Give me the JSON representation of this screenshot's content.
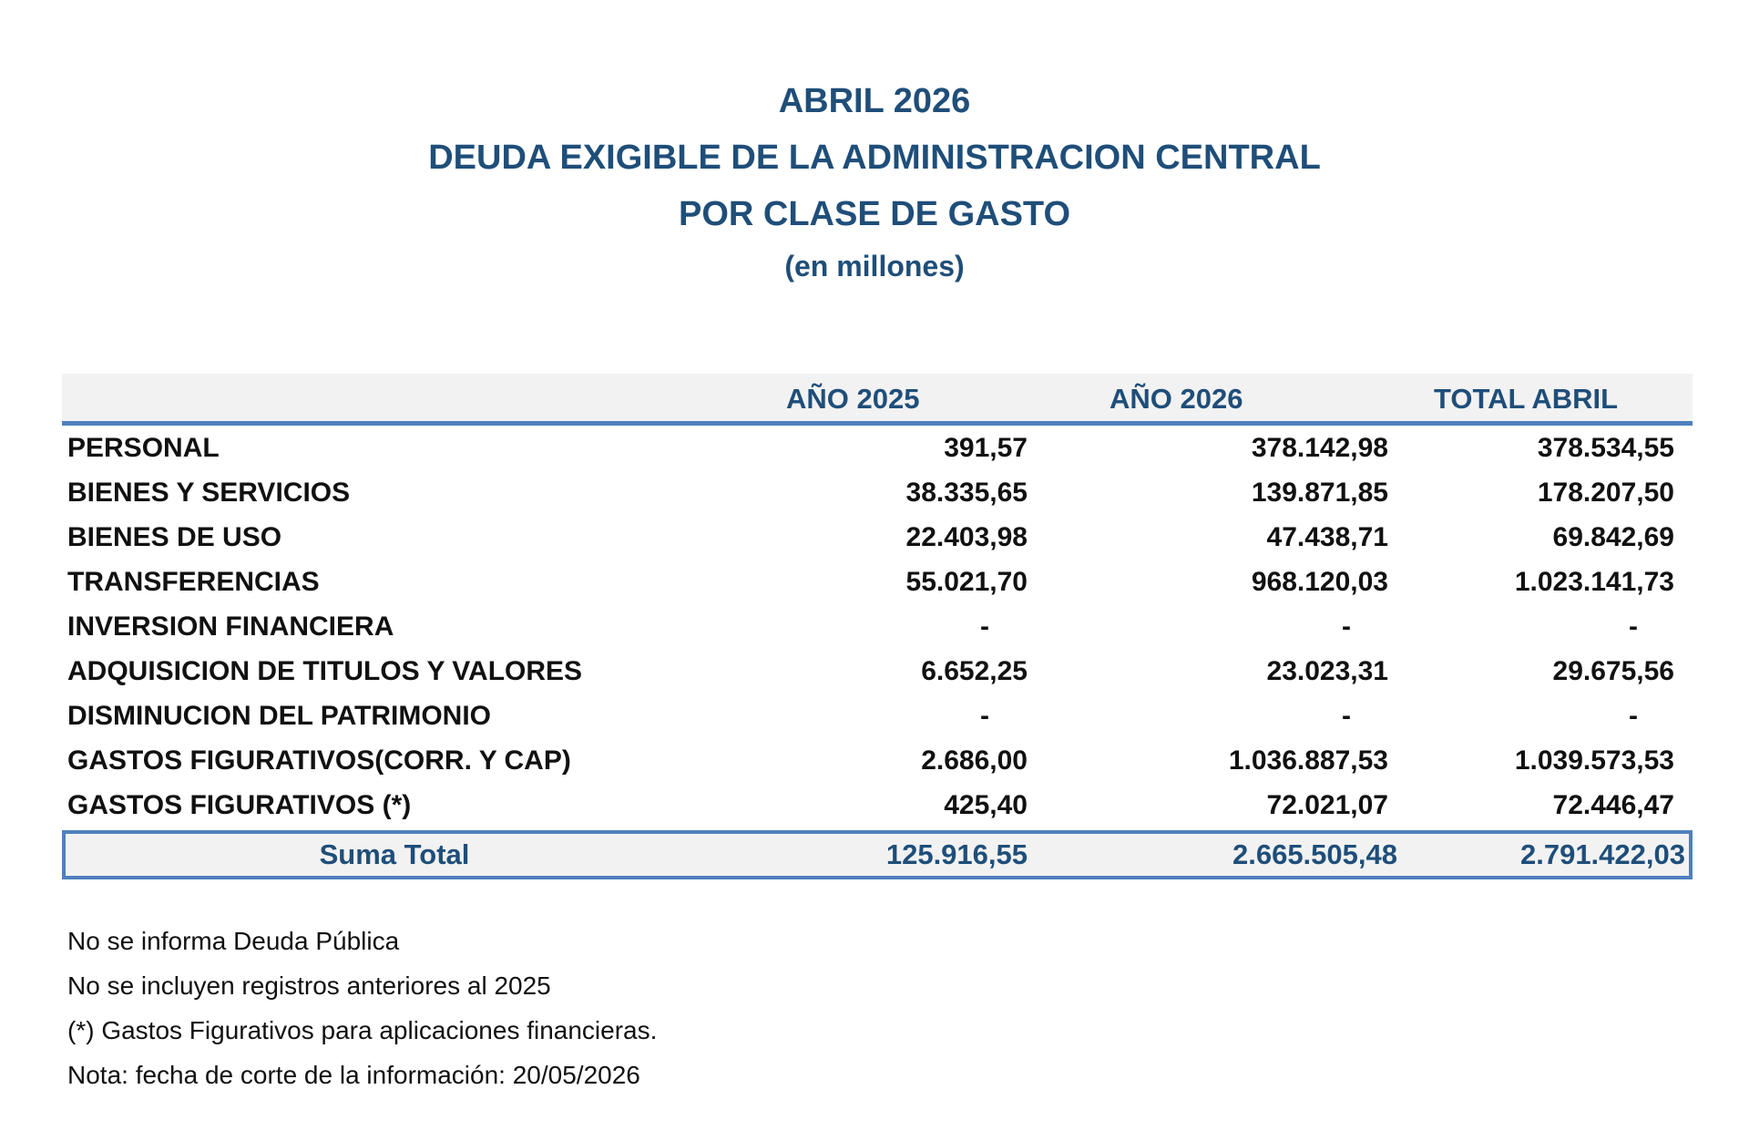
{
  "title": {
    "line1": "ABRIL 2026",
    "line2": "DEUDA EXIGIBLE DE LA ADMINISTRACION CENTRAL",
    "line3": "POR CLASE DE GASTO",
    "line4": "(en millones)"
  },
  "table": {
    "headers": [
      "",
      "AÑO 2025",
      "AÑO 2026",
      "TOTAL ABRIL"
    ],
    "rows": [
      {
        "label": "PERSONAL",
        "y2025": "391,57",
        "y2026": "378.142,98",
        "total": "378.534,55"
      },
      {
        "label": "BIENES Y SERVICIOS",
        "y2025": "38.335,65",
        "y2026": "139.871,85",
        "total": "178.207,50"
      },
      {
        "label": "BIENES DE USO",
        "y2025": "22.403,98",
        "y2026": "47.438,71",
        "total": "69.842,69"
      },
      {
        "label": "TRANSFERENCIAS",
        "y2025": "55.021,70",
        "y2026": "968.120,03",
        "total": "1.023.141,73"
      },
      {
        "label": "INVERSION FINANCIERA",
        "y2025": "-",
        "y2026": "-",
        "total": "-"
      },
      {
        "label": "ADQUISICION DE TITULOS Y VALORES",
        "y2025": "6.652,25",
        "y2026": "23.023,31",
        "total": "29.675,56"
      },
      {
        "label": "DISMINUCION DEL PATRIMONIO",
        "y2025": "-",
        "y2026": "-",
        "total": "-"
      },
      {
        "label": "GASTOS FIGURATIVOS(CORR. Y CAP)",
        "y2025": "2.686,00",
        "y2026": "1.036.887,53",
        "total": "1.039.573,53"
      },
      {
        "label": "GASTOS FIGURATIVOS (*)",
        "y2025": "425,40",
        "y2026": "72.021,07",
        "total": "72.446,47"
      }
    ],
    "total_row": {
      "label": "Suma Total",
      "y2025": "125.916,55",
      "y2026": "2.665.505,48",
      "total": "2.791.422,03"
    }
  },
  "notes": [
    "No se informa Deuda Pública",
    "No se incluyen registros anteriores al 2025",
    "(*) Gastos Figurativos para aplicaciones financieras.",
    "Nota: fecha de corte de la información: 20/05/2026"
  ],
  "colors": {
    "heading": "#1f4e79",
    "accent_border": "#4f81bd",
    "header_bg": "#f2f2f2"
  }
}
